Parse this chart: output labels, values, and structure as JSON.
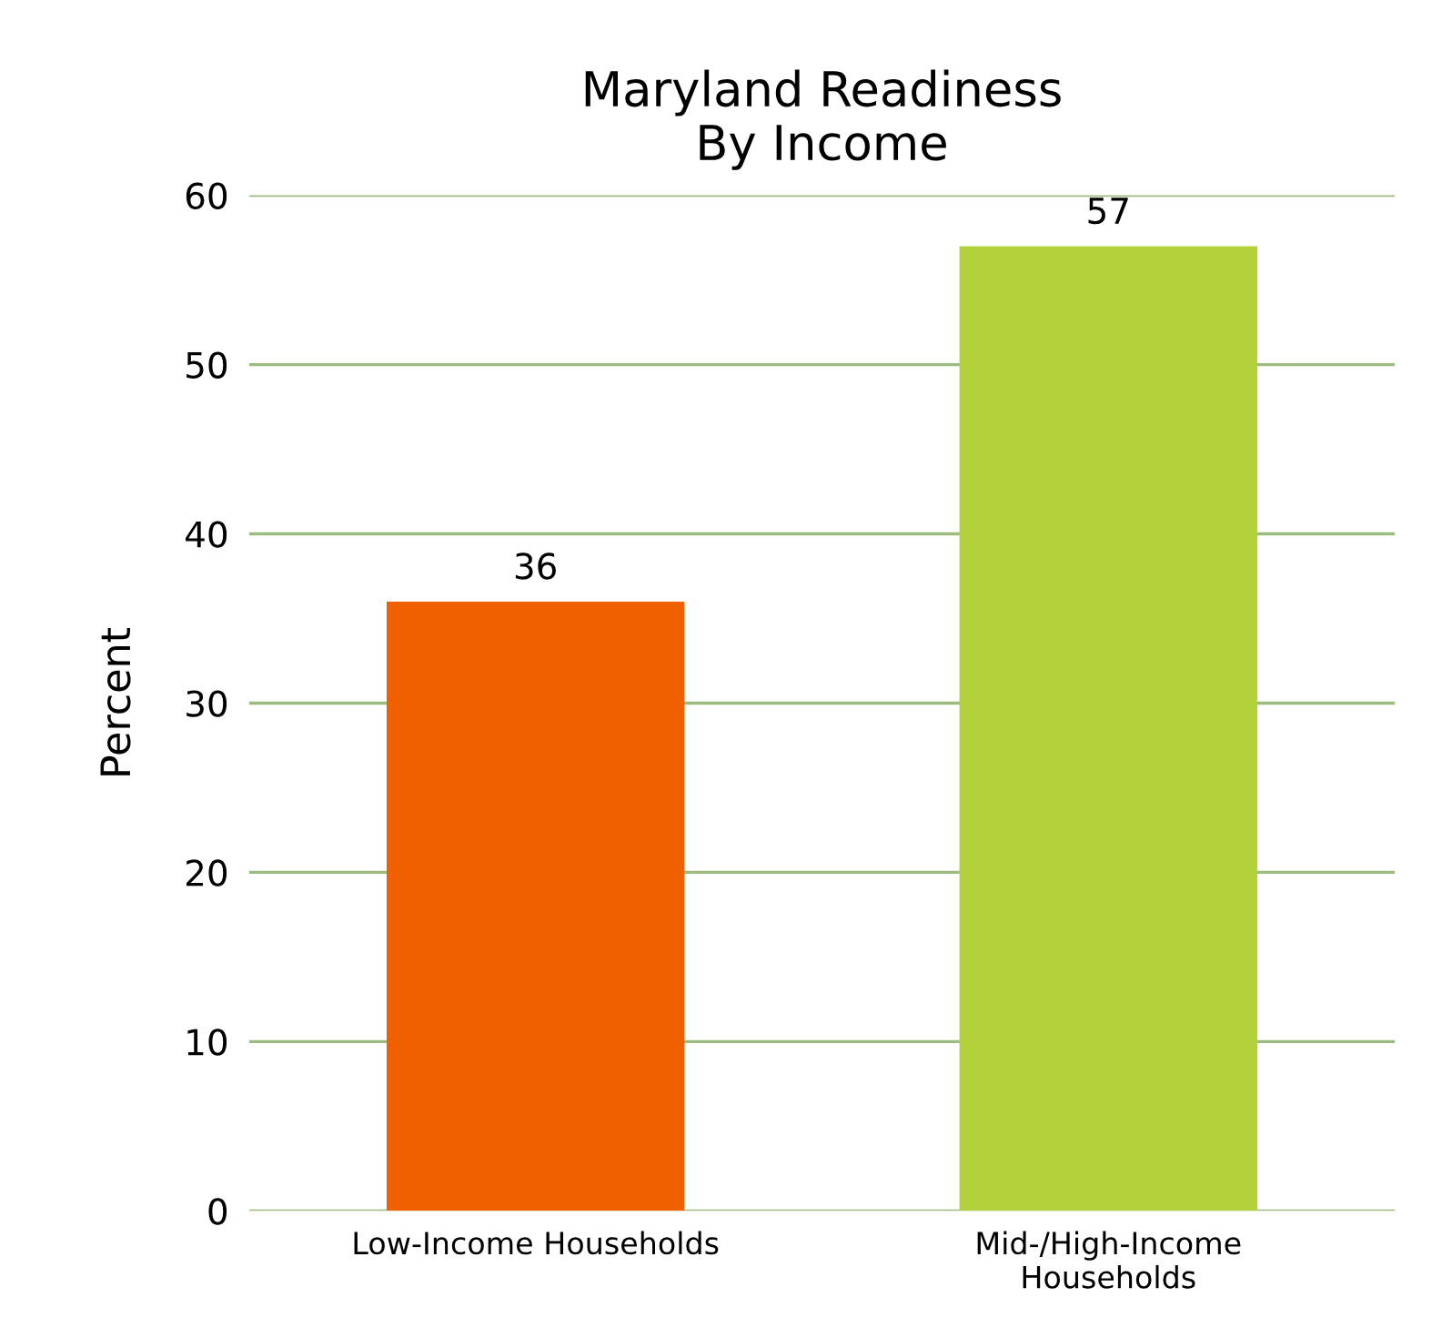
{
  "chart_data": {
    "type": "bar",
    "title": "Maryland Readiness\nBy Income",
    "ylabel": "Percent",
    "categories": [
      "Low-Income Households",
      "Mid-/High-Income\nHouseholds"
    ],
    "values": [
      36,
      57
    ],
    "colors": [
      "#f06000",
      "#b3d13b"
    ],
    "ylim": [
      0,
      60
    ],
    "yticks": [
      0,
      10,
      20,
      30,
      40,
      50,
      60
    ],
    "grid": "y",
    "data_labels": true
  }
}
